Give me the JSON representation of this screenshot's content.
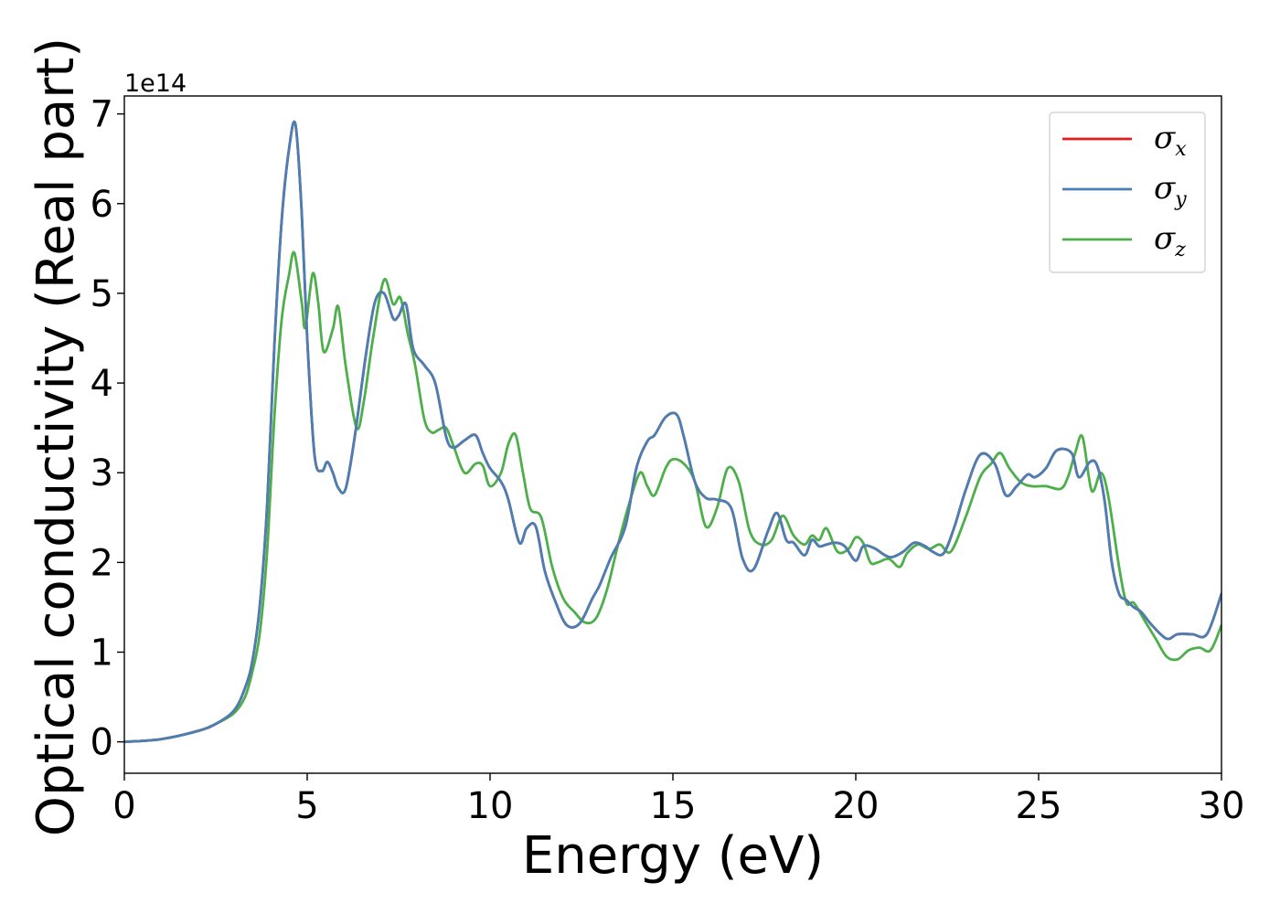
{
  "chart_data": {
    "type": "line",
    "title": "",
    "xlabel": "Energy (eV)",
    "ylabel": "Optical conductivity (Real part)",
    "y_offset_label": "1e14",
    "y_scale": 100000000000000.0,
    "xlim": [
      0,
      30
    ],
    "ylim": [
      -0.35,
      7.2
    ],
    "x_ticks": [
      0,
      5,
      10,
      15,
      20,
      25,
      30
    ],
    "x_tick_labels": [
      "0",
      "5",
      "10",
      "15",
      "20",
      "25",
      "30"
    ],
    "y_ticks": [
      0,
      1,
      2,
      3,
      4,
      5,
      6,
      7
    ],
    "y_tick_labels": [
      "0",
      "1",
      "2",
      "3",
      "4",
      "5",
      "6",
      "7"
    ],
    "grid": false,
    "legend_position": "top-right",
    "series": [
      {
        "name": "σ",
        "subscript": "x",
        "color": "#e41a1c",
        "x": [
          0,
          1,
          2,
          2.5,
          3,
          3.3,
          3.5,
          3.7,
          3.9,
          4.1,
          4.3,
          4.5,
          4.68,
          4.85,
          5.0,
          5.2,
          5.4,
          5.55,
          5.7,
          5.85,
          6.05,
          6.3,
          6.6,
          6.85,
          7.1,
          7.35,
          7.5,
          7.7,
          7.9,
          8.2,
          8.5,
          8.8,
          9.0,
          9.3,
          9.6,
          9.8,
          10.0,
          10.3,
          10.5,
          10.8,
          11.0,
          11.25,
          11.5,
          11.8,
          12.1,
          12.45,
          12.8,
          13.0,
          13.3,
          13.7,
          14.0,
          14.3,
          14.5,
          14.8,
          15.1,
          15.3,
          15.6,
          15.9,
          16.2,
          16.6,
          16.9,
          17.2,
          17.6,
          17.85,
          18.1,
          18.3,
          18.6,
          18.8,
          19.0,
          19.2,
          19.45,
          19.7,
          20.0,
          20.2,
          20.5,
          20.8,
          21.0,
          21.3,
          21.6,
          21.9,
          22.1,
          22.4,
          22.7,
          23.0,
          23.4,
          23.8,
          24.1,
          24.4,
          24.7,
          24.9,
          25.2,
          25.5,
          25.9,
          26.1,
          26.4,
          26.6,
          26.8,
          27.0,
          27.2,
          27.4,
          27.6,
          27.8,
          28.1,
          28.5,
          28.8,
          29.2,
          29.6,
          30.0
        ],
        "y": [
          0.0,
          0.03,
          0.12,
          0.2,
          0.35,
          0.6,
          0.9,
          1.5,
          2.6,
          4.4,
          5.8,
          6.6,
          6.88,
          5.9,
          4.5,
          3.2,
          3.02,
          3.12,
          3.0,
          2.83,
          2.82,
          3.4,
          4.3,
          4.9,
          5.0,
          4.72,
          4.75,
          4.88,
          4.38,
          4.2,
          4.0,
          3.4,
          3.28,
          3.36,
          3.42,
          3.22,
          3.05,
          2.9,
          2.7,
          2.22,
          2.38,
          2.4,
          1.9,
          1.55,
          1.3,
          1.32,
          1.6,
          1.75,
          2.05,
          2.4,
          3.05,
          3.35,
          3.42,
          3.62,
          3.65,
          3.4,
          2.9,
          2.72,
          2.7,
          2.6,
          2.05,
          1.92,
          2.35,
          2.55,
          2.25,
          2.22,
          2.08,
          2.25,
          2.18,
          2.2,
          2.22,
          2.18,
          2.02,
          2.18,
          2.16,
          2.08,
          2.06,
          2.12,
          2.22,
          2.18,
          2.12,
          2.1,
          2.4,
          2.8,
          3.2,
          3.1,
          2.75,
          2.85,
          2.98,
          2.95,
          3.05,
          3.25,
          3.22,
          2.95,
          3.12,
          3.08,
          2.7,
          2.0,
          1.65,
          1.58,
          1.5,
          1.45,
          1.3,
          1.15,
          1.2,
          1.2,
          1.2,
          1.65
        ]
      },
      {
        "name": "σ",
        "subscript": "y",
        "color": "#4a7fb5",
        "x": [
          0,
          1,
          2,
          2.5,
          3,
          3.3,
          3.5,
          3.7,
          3.9,
          4.1,
          4.3,
          4.5,
          4.68,
          4.85,
          5.0,
          5.2,
          5.4,
          5.55,
          5.7,
          5.85,
          6.05,
          6.3,
          6.6,
          6.85,
          7.1,
          7.35,
          7.5,
          7.7,
          7.9,
          8.2,
          8.5,
          8.8,
          9.0,
          9.3,
          9.6,
          9.8,
          10.0,
          10.3,
          10.5,
          10.8,
          11.0,
          11.25,
          11.5,
          11.8,
          12.1,
          12.45,
          12.8,
          13.0,
          13.3,
          13.7,
          14.0,
          14.3,
          14.5,
          14.8,
          15.1,
          15.3,
          15.6,
          15.9,
          16.2,
          16.6,
          16.9,
          17.2,
          17.6,
          17.85,
          18.1,
          18.3,
          18.6,
          18.8,
          19.0,
          19.2,
          19.45,
          19.7,
          20.0,
          20.2,
          20.5,
          20.8,
          21.0,
          21.3,
          21.6,
          21.9,
          22.1,
          22.4,
          22.7,
          23.0,
          23.4,
          23.8,
          24.1,
          24.4,
          24.7,
          24.9,
          25.2,
          25.5,
          25.9,
          26.1,
          26.4,
          26.6,
          26.8,
          27.0,
          27.2,
          27.4,
          27.6,
          27.8,
          28.1,
          28.5,
          28.8,
          29.2,
          29.6,
          30.0
        ],
        "y": [
          0.0,
          0.03,
          0.12,
          0.2,
          0.35,
          0.6,
          0.9,
          1.5,
          2.6,
          4.4,
          5.8,
          6.6,
          6.88,
          5.9,
          4.5,
          3.2,
          3.02,
          3.12,
          3.0,
          2.83,
          2.82,
          3.4,
          4.3,
          4.9,
          5.0,
          4.72,
          4.75,
          4.88,
          4.38,
          4.2,
          4.0,
          3.4,
          3.28,
          3.36,
          3.42,
          3.22,
          3.05,
          2.9,
          2.7,
          2.22,
          2.38,
          2.4,
          1.9,
          1.55,
          1.3,
          1.32,
          1.6,
          1.75,
          2.05,
          2.4,
          3.05,
          3.35,
          3.42,
          3.62,
          3.65,
          3.4,
          2.9,
          2.72,
          2.7,
          2.6,
          2.05,
          1.92,
          2.35,
          2.55,
          2.25,
          2.22,
          2.08,
          2.25,
          2.18,
          2.2,
          2.22,
          2.18,
          2.02,
          2.18,
          2.16,
          2.08,
          2.06,
          2.12,
          2.22,
          2.18,
          2.12,
          2.1,
          2.4,
          2.8,
          3.2,
          3.1,
          2.75,
          2.85,
          2.98,
          2.95,
          3.05,
          3.25,
          3.22,
          2.95,
          3.12,
          3.08,
          2.7,
          2.0,
          1.65,
          1.58,
          1.5,
          1.45,
          1.3,
          1.15,
          1.2,
          1.2,
          1.2,
          1.65
        ]
      },
      {
        "name": "σ",
        "subscript": "z",
        "color": "#4daf4a",
        "x": [
          0,
          1,
          2,
          2.5,
          3,
          3.3,
          3.5,
          3.7,
          3.9,
          4.1,
          4.3,
          4.5,
          4.65,
          4.85,
          4.95,
          5.15,
          5.3,
          5.45,
          5.7,
          5.85,
          6.05,
          6.35,
          6.55,
          6.8,
          7.1,
          7.35,
          7.55,
          7.75,
          7.95,
          8.2,
          8.4,
          8.6,
          8.8,
          9.0,
          9.3,
          9.6,
          9.8,
          10.0,
          10.3,
          10.5,
          10.7,
          10.9,
          11.1,
          11.4,
          11.7,
          12.0,
          12.3,
          12.6,
          12.9,
          13.2,
          13.5,
          13.8,
          14.1,
          14.3,
          14.5,
          14.8,
          15.0,
          15.3,
          15.6,
          15.9,
          16.2,
          16.5,
          16.8,
          17.1,
          17.4,
          17.7,
          18.0,
          18.3,
          18.6,
          18.8,
          19.0,
          19.2,
          19.5,
          19.8,
          20.0,
          20.2,
          20.4,
          20.6,
          20.9,
          21.2,
          21.4,
          21.7,
          22.0,
          22.3,
          22.6,
          23.0,
          23.4,
          23.7,
          23.95,
          24.2,
          24.5,
          24.8,
          25.2,
          25.6,
          25.8,
          26.0,
          26.2,
          26.45,
          26.7,
          26.9,
          27.2,
          27.4,
          27.6,
          27.9,
          28.2,
          28.5,
          28.8,
          29.1,
          29.4,
          29.7,
          30.0
        ],
        "y": [
          0.0,
          0.03,
          0.12,
          0.2,
          0.32,
          0.5,
          0.78,
          1.2,
          2.1,
          3.6,
          4.7,
          5.2,
          5.45,
          4.9,
          4.62,
          5.22,
          4.9,
          4.35,
          4.6,
          4.85,
          4.2,
          3.5,
          3.8,
          4.5,
          5.15,
          4.88,
          4.95,
          4.55,
          4.2,
          3.6,
          3.45,
          3.48,
          3.5,
          3.3,
          3.0,
          3.1,
          3.08,
          2.85,
          3.0,
          3.32,
          3.42,
          3.0,
          2.6,
          2.5,
          1.95,
          1.6,
          1.45,
          1.33,
          1.38,
          1.7,
          2.2,
          2.65,
          3.0,
          2.85,
          2.75,
          3.05,
          3.15,
          3.1,
          2.9,
          2.4,
          2.6,
          3.05,
          2.9,
          2.35,
          2.2,
          2.25,
          2.52,
          2.3,
          2.2,
          2.3,
          2.25,
          2.38,
          2.12,
          2.15,
          2.28,
          2.22,
          2.0,
          2.0,
          2.04,
          1.95,
          2.1,
          2.2,
          2.15,
          2.2,
          2.12,
          2.5,
          2.95,
          3.1,
          3.22,
          3.05,
          2.9,
          2.85,
          2.85,
          2.82,
          2.95,
          3.22,
          3.4,
          2.8,
          3.0,
          2.75,
          1.95,
          1.55,
          1.55,
          1.35,
          1.15,
          0.95,
          0.92,
          1.02,
          1.05,
          1.02,
          1.3
        ]
      }
    ]
  }
}
